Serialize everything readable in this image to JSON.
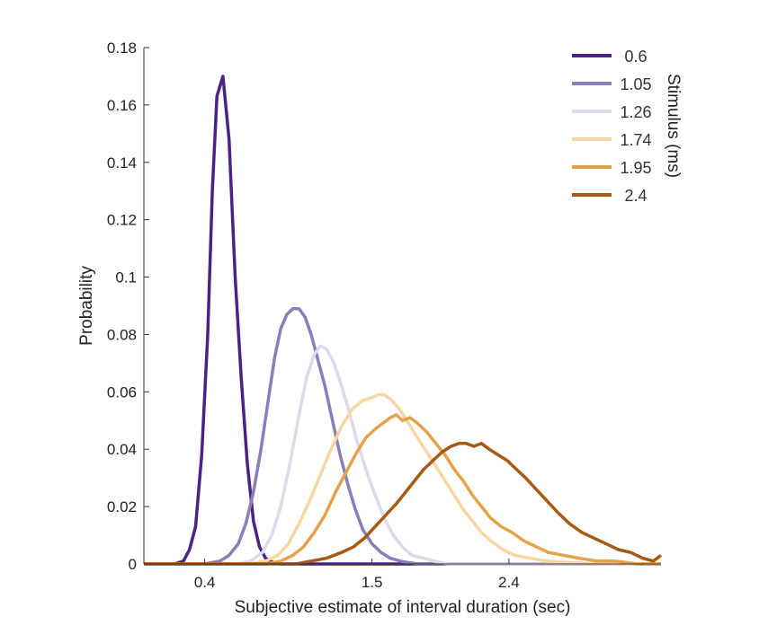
{
  "chart_data": {
    "type": "line",
    "title": "",
    "xlabel": "Subjective estimate of interval duration (sec)",
    "ylabel": "Probability",
    "xlim": [
      0,
      3.4
    ],
    "ylim": [
      0,
      0.18
    ],
    "x_ticks": [
      0.4,
      1.5,
      2.4
    ],
    "x_tick_labels": [
      "0.4",
      "1.5",
      "2.4"
    ],
    "y_ticks": [
      0,
      0.02,
      0.04,
      0.06,
      0.08,
      0.1,
      0.12,
      0.14,
      0.16,
      0.18
    ],
    "y_tick_labels": [
      "0",
      "0.02",
      "0.04",
      "0.06",
      "0.08",
      "0.1",
      "0.12",
      "0.14",
      "0.16",
      "0.18"
    ],
    "grid": false,
    "legend_title": "Stimulus (ms)",
    "legend_position": "top-right",
    "series": [
      {
        "name": "0.6",
        "color": "#4b2384",
        "points": [
          [
            0.0,
            0
          ],
          [
            0.2,
            0
          ],
          [
            0.26,
            0.001
          ],
          [
            0.3,
            0.005
          ],
          [
            0.34,
            0.013
          ],
          [
            0.38,
            0.038
          ],
          [
            0.42,
            0.08
          ],
          [
            0.45,
            0.13
          ],
          [
            0.48,
            0.163
          ],
          [
            0.52,
            0.17
          ],
          [
            0.56,
            0.148
          ],
          [
            0.6,
            0.1
          ],
          [
            0.64,
            0.065
          ],
          [
            0.68,
            0.035
          ],
          [
            0.72,
            0.015
          ],
          [
            0.76,
            0.006
          ],
          [
            0.8,
            0.002
          ],
          [
            0.85,
            0.0005
          ],
          [
            0.9,
            0
          ],
          [
            1.0,
            0
          ],
          [
            1.5,
            0
          ],
          [
            2.4,
            0
          ],
          [
            3.4,
            0
          ]
        ]
      },
      {
        "name": "1.05",
        "color": "#8580b9",
        "points": [
          [
            0.0,
            0
          ],
          [
            0.4,
            0
          ],
          [
            0.5,
            0.001
          ],
          [
            0.56,
            0.003
          ],
          [
            0.62,
            0.007
          ],
          [
            0.67,
            0.014
          ],
          [
            0.72,
            0.025
          ],
          [
            0.77,
            0.04
          ],
          [
            0.82,
            0.058
          ],
          [
            0.86,
            0.072
          ],
          [
            0.9,
            0.082
          ],
          [
            0.94,
            0.087
          ],
          [
            0.98,
            0.089
          ],
          [
            1.02,
            0.089
          ],
          [
            1.06,
            0.086
          ],
          [
            1.1,
            0.08
          ],
          [
            1.14,
            0.072
          ],
          [
            1.19,
            0.062
          ],
          [
            1.24,
            0.05
          ],
          [
            1.29,
            0.038
          ],
          [
            1.34,
            0.028
          ],
          [
            1.39,
            0.019
          ],
          [
            1.44,
            0.012
          ],
          [
            1.5,
            0.007
          ],
          [
            1.56,
            0.004
          ],
          [
            1.62,
            0.002
          ],
          [
            1.7,
            0.0008
          ],
          [
            1.8,
            0
          ],
          [
            2.0,
            0
          ],
          [
            3.4,
            0
          ]
        ]
      },
      {
        "name": "1.26",
        "color": "#dcd9ea",
        "points": [
          [
            0.0,
            0
          ],
          [
            0.6,
            0
          ],
          [
            0.7,
            0.001
          ],
          [
            0.78,
            0.004
          ],
          [
            0.84,
            0.01
          ],
          [
            0.9,
            0.02
          ],
          [
            0.96,
            0.035
          ],
          [
            1.02,
            0.052
          ],
          [
            1.07,
            0.065
          ],
          [
            1.12,
            0.073
          ],
          [
            1.16,
            0.076
          ],
          [
            1.2,
            0.075
          ],
          [
            1.25,
            0.07
          ],
          [
            1.3,
            0.062
          ],
          [
            1.35,
            0.053
          ],
          [
            1.4,
            0.043
          ],
          [
            1.46,
            0.033
          ],
          [
            1.52,
            0.024
          ],
          [
            1.58,
            0.016
          ],
          [
            1.64,
            0.01
          ],
          [
            1.7,
            0.006
          ],
          [
            1.76,
            0.003
          ],
          [
            1.84,
            0.002
          ],
          [
            1.92,
            0.0008
          ],
          [
            2.0,
            0
          ],
          [
            3.4,
            0
          ]
        ]
      },
      {
        "name": "1.74",
        "color": "#f6d6a3",
        "points": [
          [
            0.0,
            0
          ],
          [
            0.7,
            0
          ],
          [
            0.8,
            0.001
          ],
          [
            0.88,
            0.003
          ],
          [
            0.95,
            0.007
          ],
          [
            1.02,
            0.014
          ],
          [
            1.09,
            0.022
          ],
          [
            1.16,
            0.031
          ],
          [
            1.23,
            0.04
          ],
          [
            1.3,
            0.048
          ],
          [
            1.37,
            0.054
          ],
          [
            1.44,
            0.057
          ],
          [
            1.5,
            0.058
          ],
          [
            1.54,
            0.059
          ],
          [
            1.58,
            0.059
          ],
          [
            1.63,
            0.057
          ],
          [
            1.68,
            0.054
          ],
          [
            1.74,
            0.049
          ],
          [
            1.8,
            0.044
          ],
          [
            1.86,
            0.039
          ],
          [
            1.92,
            0.034
          ],
          [
            1.98,
            0.029
          ],
          [
            2.04,
            0.024
          ],
          [
            2.1,
            0.019
          ],
          [
            2.16,
            0.015
          ],
          [
            2.22,
            0.011
          ],
          [
            2.28,
            0.008
          ],
          [
            2.36,
            0.005
          ],
          [
            2.44,
            0.003
          ],
          [
            2.54,
            0.002
          ],
          [
            2.65,
            0.001
          ],
          [
            2.8,
            0.0005
          ],
          [
            3.0,
            0
          ],
          [
            3.4,
            0
          ]
        ]
      },
      {
        "name": "1.95",
        "color": "#e4a24c",
        "points": [
          [
            0.0,
            0
          ],
          [
            0.8,
            0
          ],
          [
            0.9,
            0.001
          ],
          [
            0.98,
            0.003
          ],
          [
            1.05,
            0.006
          ],
          [
            1.12,
            0.011
          ],
          [
            1.19,
            0.017
          ],
          [
            1.26,
            0.025
          ],
          [
            1.33,
            0.032
          ],
          [
            1.4,
            0.039
          ],
          [
            1.46,
            0.044
          ],
          [
            1.52,
            0.047
          ],
          [
            1.57,
            0.049
          ],
          [
            1.62,
            0.051
          ],
          [
            1.66,
            0.052
          ],
          [
            1.7,
            0.05
          ],
          [
            1.75,
            0.051
          ],
          [
            1.8,
            0.049
          ],
          [
            1.86,
            0.046
          ],
          [
            1.92,
            0.042
          ],
          [
            1.98,
            0.038
          ],
          [
            2.04,
            0.033
          ],
          [
            2.1,
            0.029
          ],
          [
            2.16,
            0.024
          ],
          [
            2.22,
            0.02
          ],
          [
            2.28,
            0.016
          ],
          [
            2.35,
            0.013
          ],
          [
            2.42,
            0.011
          ],
          [
            2.5,
            0.008
          ],
          [
            2.58,
            0.006
          ],
          [
            2.66,
            0.004
          ],
          [
            2.76,
            0.003
          ],
          [
            2.86,
            0.002
          ],
          [
            2.98,
            0.001
          ],
          [
            3.1,
            0.001
          ],
          [
            3.25,
            0
          ],
          [
            3.4,
            0
          ]
        ]
      },
      {
        "name": "2.4",
        "color": "#a55a16",
        "points": [
          [
            0.0,
            0
          ],
          [
            1.0,
            0
          ],
          [
            1.1,
            0.001
          ],
          [
            1.2,
            0.002
          ],
          [
            1.3,
            0.004
          ],
          [
            1.38,
            0.006
          ],
          [
            1.45,
            0.009
          ],
          [
            1.52,
            0.013
          ],
          [
            1.59,
            0.017
          ],
          [
            1.66,
            0.021
          ],
          [
            1.72,
            0.025
          ],
          [
            1.78,
            0.029
          ],
          [
            1.84,
            0.033
          ],
          [
            1.9,
            0.036
          ],
          [
            1.96,
            0.039
          ],
          [
            2.02,
            0.041
          ],
          [
            2.07,
            0.042
          ],
          [
            2.12,
            0.042
          ],
          [
            2.17,
            0.041
          ],
          [
            2.22,
            0.042
          ],
          [
            2.27,
            0.04
          ],
          [
            2.33,
            0.038
          ],
          [
            2.39,
            0.036
          ],
          [
            2.45,
            0.033
          ],
          [
            2.51,
            0.03
          ],
          [
            2.58,
            0.026
          ],
          [
            2.65,
            0.022
          ],
          [
            2.72,
            0.018
          ],
          [
            2.8,
            0.014
          ],
          [
            2.88,
            0.011
          ],
          [
            2.96,
            0.009
          ],
          [
            3.04,
            0.007
          ],
          [
            3.12,
            0.005
          ],
          [
            3.2,
            0.004
          ],
          [
            3.28,
            0.002
          ],
          [
            3.35,
            0.001
          ],
          [
            3.4,
            0.003
          ]
        ]
      }
    ]
  }
}
